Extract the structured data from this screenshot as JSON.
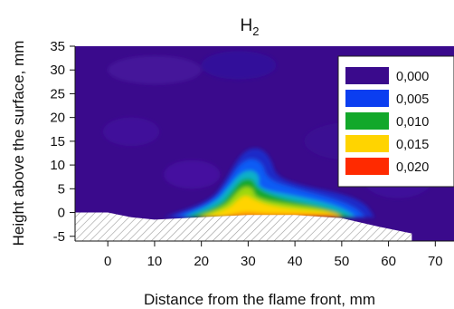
{
  "chart_data": {
    "type": "heatmap",
    "title": "H",
    "title_subscript": "2",
    "xlabel": "Distance from the flame front, mm",
    "ylabel": "Height above the surface, mm",
    "xlim": [
      -7,
      74
    ],
    "ylim": [
      -6,
      35
    ],
    "xticks": [
      0,
      10,
      20,
      30,
      40,
      50,
      60,
      70
    ],
    "yticks": [
      -5,
      0,
      5,
      10,
      15,
      20,
      25,
      30,
      35
    ],
    "tick_labels_y": [
      "-5",
      "0",
      "5",
      "10",
      "15",
      "20",
      "25",
      "30",
      "35"
    ],
    "tick_labels_x": [
      "0",
      "10",
      "20",
      "30",
      "40",
      "50",
      "60",
      "70"
    ],
    "legend": {
      "placement": "top-right",
      "entries": [
        {
          "label": "0,000",
          "color": "#3a0a8c"
        },
        {
          "label": "0,005",
          "color": "#0b3ef0"
        },
        {
          "label": "0,010",
          "color": "#12a82a"
        },
        {
          "label": "0,015",
          "color": "#ffd400"
        },
        {
          "label": "0,020",
          "color": "#ff2a00"
        }
      ]
    },
    "background_color": "#3a0a8c",
    "levels": [
      {
        "value": 0.0025,
        "color": "#1a2cc8",
        "polygon": [
          [
            12,
            -1
          ],
          [
            22,
            2.5
          ],
          [
            25,
            6.5
          ],
          [
            27.5,
            11
          ],
          [
            30,
            13.5
          ],
          [
            33,
            13.5
          ],
          [
            35,
            11
          ],
          [
            36,
            7.5
          ],
          [
            42,
            5.5
          ],
          [
            50,
            4
          ],
          [
            55,
            2
          ],
          [
            57,
            -1
          ]
        ]
      },
      {
        "value": 0.005,
        "color": "#0b5cf5",
        "polygon": [
          [
            14,
            -1
          ],
          [
            22,
            2
          ],
          [
            25.5,
            6
          ],
          [
            28,
            10
          ],
          [
            30.5,
            11.5
          ],
          [
            33,
            10.5
          ],
          [
            34,
            7
          ],
          [
            40,
            5
          ],
          [
            48,
            3
          ],
          [
            53,
            1
          ],
          [
            55,
            -1
          ]
        ]
      },
      {
        "value": 0.0075,
        "color": "#0bb0c8",
        "polygon": [
          [
            16,
            -1
          ],
          [
            23,
            2
          ],
          [
            26,
            5.5
          ],
          [
            28.5,
            8.5
          ],
          [
            31,
            9
          ],
          [
            32.5,
            7.5
          ],
          [
            32,
            5
          ],
          [
            40,
            3.5
          ],
          [
            47,
            2
          ],
          [
            51,
            0.5
          ],
          [
            53,
            -1
          ]
        ]
      },
      {
        "value": 0.01,
        "color": "#12a82a",
        "polygon": [
          [
            17,
            -1
          ],
          [
            24,
            1.5
          ],
          [
            26.5,
            4.5
          ],
          [
            28.5,
            7
          ],
          [
            31,
            7.2
          ],
          [
            32,
            5
          ],
          [
            37,
            3
          ],
          [
            45,
            1.5
          ],
          [
            49,
            0.3
          ],
          [
            52,
            -1
          ]
        ]
      },
      {
        "value": 0.0125,
        "color": "#9ed80a",
        "polygon": [
          [
            19,
            -1
          ],
          [
            25,
            1.3
          ],
          [
            27,
            3.5
          ],
          [
            29,
            5.5
          ],
          [
            31,
            5.2
          ],
          [
            31.5,
            3
          ],
          [
            38,
            1.8
          ],
          [
            46,
            0.8
          ],
          [
            50,
            -1
          ]
        ]
      },
      {
        "value": 0.015,
        "color": "#ffd400",
        "polygon": [
          [
            20,
            -1
          ],
          [
            26,
            0.9
          ],
          [
            27.5,
            2.5
          ],
          [
            29.5,
            3.8
          ],
          [
            31,
            2.8
          ],
          [
            35,
            1.3
          ],
          [
            42,
            0.5
          ],
          [
            48,
            0.2
          ],
          [
            50,
            -1
          ]
        ]
      },
      {
        "value": 0.0175,
        "color": "#ff8a00",
        "polygon": [
          [
            24,
            -1
          ],
          [
            29,
            0.2
          ],
          [
            33,
            -0.2
          ],
          [
            40,
            -0.2
          ],
          [
            45,
            -0.4
          ],
          [
            48,
            -0.4
          ],
          [
            49.5,
            -1
          ]
        ]
      },
      {
        "value": 0.02,
        "color": "#ff2a00",
        "polygon": [
          [
            38,
            -1
          ],
          [
            42,
            -0.6
          ],
          [
            46,
            -0.6
          ],
          [
            49,
            -1
          ]
        ]
      }
    ],
    "surface": {
      "fill": "hatched",
      "profile": [
        [
          -7,
          0
        ],
        [
          0,
          0
        ],
        [
          5,
          -1
        ],
        [
          10,
          -1.5
        ],
        [
          20,
          -1
        ],
        [
          30,
          -0.5
        ],
        [
          40,
          -0.5
        ],
        [
          50,
          -1.2
        ],
        [
          58,
          -3
        ],
        [
          65,
          -4.4
        ]
      ]
    }
  }
}
